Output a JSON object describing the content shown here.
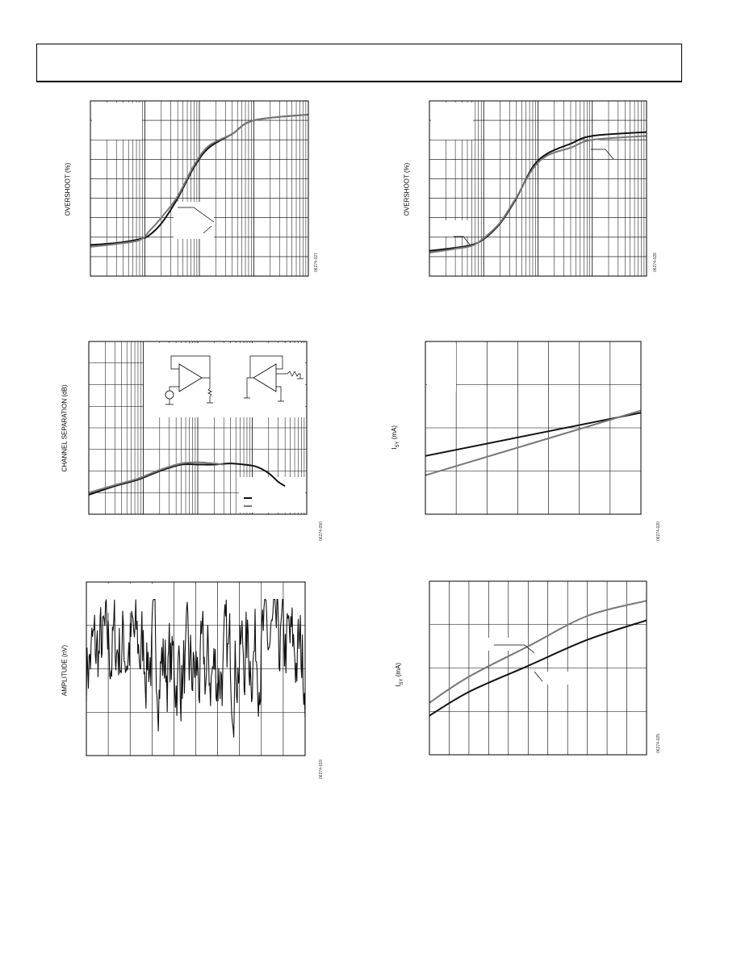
{
  "header": {},
  "charts": {
    "overshoot_1": {
      "ylabel": "OVERSHOOT (%)",
      "fig_id": "06274-027",
      "chart_data": {
        "type": "line",
        "xscale": "log",
        "xlim": [
          1,
          10000
        ],
        "ylim": [
          0,
          9
        ],
        "grid": true,
        "series": [
          {
            "color": "#111111",
            "points": [
              [
                1,
                1.6
              ],
              [
                3,
                1.7
              ],
              [
                8,
                1.9
              ],
              [
                12,
                2.1
              ],
              [
                20,
                2.7
              ],
              [
                40,
                4.0
              ],
              [
                80,
                5.6
              ],
              [
                150,
                6.6
              ],
              [
                400,
                7.3
              ],
              [
                1000,
                8.0
              ],
              [
                10000,
                8.3
              ]
            ]
          },
          {
            "color": "#777777",
            "points": [
              [
                1,
                1.5
              ],
              [
                3,
                1.65
              ],
              [
                8,
                1.85
              ],
              [
                12,
                2.3
              ],
              [
                20,
                3.0
              ],
              [
                40,
                4.1
              ],
              [
                80,
                5.7
              ],
              [
                150,
                6.7
              ],
              [
                400,
                7.3
              ],
              [
                1000,
                8.0
              ],
              [
                10000,
                8.3
              ]
            ]
          }
        ]
      }
    },
    "overshoot_2": {
      "ylabel": "OVERSHOOT (%)",
      "fig_id": "06274-028",
      "chart_data": {
        "type": "line",
        "xscale": "log",
        "xlim": [
          1,
          10000
        ],
        "ylim": [
          0,
          9
        ],
        "grid": true,
        "series": [
          {
            "color": "#111111",
            "points": [
              [
                1,
                1.3
              ],
              [
                3,
                1.45
              ],
              [
                6,
                1.6
              ],
              [
                10,
                1.9
              ],
              [
                20,
                2.7
              ],
              [
                40,
                4.0
              ],
              [
                80,
                5.6
              ],
              [
                150,
                6.3
              ],
              [
                400,
                6.8
              ],
              [
                1000,
                7.2
              ],
              [
                10000,
                7.4
              ]
            ]
          },
          {
            "color": "#777777",
            "points": [
              [
                1,
                1.2
              ],
              [
                3,
                1.4
              ],
              [
                6,
                1.55
              ],
              [
                10,
                1.95
              ],
              [
                20,
                2.75
              ],
              [
                40,
                4.05
              ],
              [
                80,
                5.5
              ],
              [
                150,
                6.2
              ],
              [
                400,
                6.6
              ],
              [
                1000,
                7.0
              ],
              [
                10000,
                7.2
              ]
            ]
          }
        ]
      }
    },
    "channel_separation": {
      "ylabel": "CHANNEL SEPARATION (dB)",
      "fig_id": "06274-050",
      "chart_data": {
        "type": "line",
        "xscale": "log",
        "xlim": [
          1,
          10000
        ],
        "ylim": [
          0,
          8
        ],
        "grid": true,
        "series": [
          {
            "color": "#111111",
            "points": [
              [
                1,
                0.9
              ],
              [
                3,
                1.3
              ],
              [
                8,
                1.6
              ],
              [
                20,
                2.0
              ],
              [
                50,
                2.3
              ],
              [
                100,
                2.3
              ],
              [
                200,
                2.3
              ],
              [
                400,
                2.35
              ],
              [
                700,
                2.3
              ],
              [
                1200,
                2.2
              ],
              [
                2000,
                1.9
              ],
              [
                3000,
                1.5
              ],
              [
                4000,
                1.3
              ]
            ]
          },
          {
            "color": "#777777",
            "points": [
              [
                1,
                1.0
              ],
              [
                3,
                1.35
              ],
              [
                8,
                1.65
              ],
              [
                20,
                2.05
              ],
              [
                50,
                2.35
              ],
              [
                100,
                2.4
              ],
              [
                200,
                2.35
              ],
              [
                300,
                2.3
              ]
            ]
          }
        ]
      }
    },
    "isy_1": {
      "ylabel_main": "I",
      "ylabel_sub": "SY",
      "ylabel_rest": " (mA)",
      "fig_id": "06274-020",
      "chart_data": {
        "type": "line",
        "xlim": [
          0,
          7
        ],
        "ylim": [
          0,
          4
        ],
        "grid": true,
        "series": [
          {
            "color": "#111111",
            "points": [
              [
                0,
                1.35
              ],
              [
                7,
                2.35
              ]
            ]
          },
          {
            "color": "#777777",
            "points": [
              [
                0,
                0.9
              ],
              [
                7,
                2.4
              ]
            ]
          }
        ]
      }
    },
    "noise": {
      "ylabel": "AMPLITUDE (nV)",
      "fig_id": "06274-019",
      "chart_data": {
        "type": "line",
        "xlim": [
          0,
          1
        ],
        "ylim": [
          -2,
          2
        ],
        "grid": true,
        "series": [
          {
            "color": "#111111",
            "seed": 7,
            "samples": 320
          }
        ]
      }
    },
    "isy_2": {
      "ylabel_main": "I",
      "ylabel_sub": "SY",
      "ylabel_rest": " (mA)",
      "fig_id": "06274-025",
      "chart_data": {
        "type": "line",
        "xlim": [
          0,
          11
        ],
        "ylim": [
          0,
          4
        ],
        "grid": true,
        "series": [
          {
            "color": "#111111",
            "points": [
              [
                0,
                0.9
              ],
              [
                2,
                1.45
              ],
              [
                5,
                2.05
              ],
              [
                8,
                2.65
              ],
              [
                11,
                3.1
              ]
            ]
          },
          {
            "color": "#777777",
            "points": [
              [
                0,
                1.2
              ],
              [
                2,
                1.8
              ],
              [
                5,
                2.5
              ],
              [
                8,
                3.2
              ],
              [
                11,
                3.55
              ]
            ]
          }
        ]
      }
    }
  }
}
